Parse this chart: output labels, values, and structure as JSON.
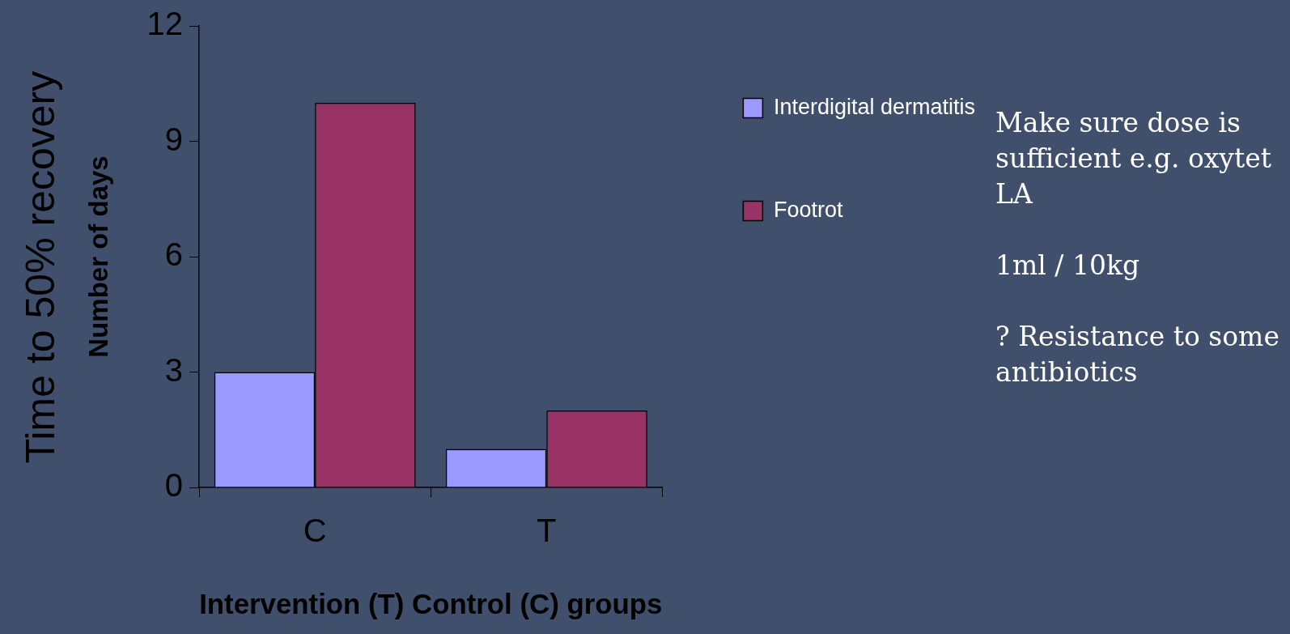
{
  "chart_data": {
    "type": "bar",
    "title": "Time to 50% recovery",
    "ylabel": "Number of days",
    "xlabel": "Intervention (T) Control (C) groups",
    "categories": [
      "C",
      "T"
    ],
    "series": [
      {
        "name": "Interdigital dermatitis",
        "color": "#9999ff",
        "values": [
          3,
          1
        ]
      },
      {
        "name": "Footrot",
        "color": "#993366",
        "values": [
          10,
          2
        ]
      }
    ],
    "ylim": [
      0,
      12
    ],
    "yticks": [
      0,
      3,
      6,
      9,
      12
    ],
    "grid": false,
    "legend": "top right",
    "annotations": [
      "Make sure dose is sufficient e.g. oxytet LA",
      "1ml / 10kg",
      "? Resistance to some antibiotics"
    ]
  }
}
